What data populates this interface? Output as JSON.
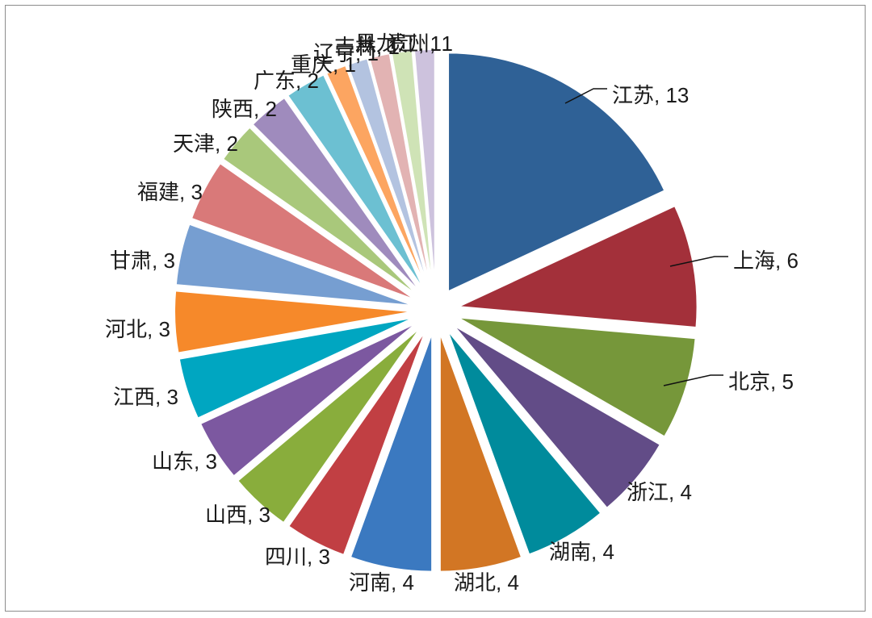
{
  "chart_data": {
    "type": "pie",
    "exploded": true,
    "legend": "none",
    "title": "",
    "slices": [
      {
        "label": "江苏",
        "value": 13,
        "text": "江苏, 13",
        "color": "#2f6196"
      },
      {
        "label": "上海",
        "value": 6,
        "text": "上海, 6",
        "color": "#a3303a"
      },
      {
        "label": "北京",
        "value": 5,
        "text": "北京, 5",
        "color": "#76973a"
      },
      {
        "label": "浙江",
        "value": 4,
        "text": "浙江, 4",
        "color": "#624c87"
      },
      {
        "label": "湖南",
        "value": 4,
        "text": "湖南, 4",
        "color": "#008b9c"
      },
      {
        "label": "湖北",
        "value": 4,
        "text": "湖北, 4",
        "color": "#d27624"
      },
      {
        "label": "河南",
        "value": 4,
        "text": "河南, 4",
        "color": "#3b79c0"
      },
      {
        "label": "四川",
        "value": 3,
        "text": "四川, 3",
        "color": "#c13f43"
      },
      {
        "label": "山西",
        "value": 3,
        "text": "山西, 3",
        "color": "#89ad3c"
      },
      {
        "label": "山东",
        "value": 3,
        "text": "山东, 3",
        "color": "#7c58a0"
      },
      {
        "label": "江西",
        "value": 3,
        "text": "江西, 3",
        "color": "#00a6c1"
      },
      {
        "label": "河北",
        "value": 3,
        "text": "河北, 3",
        "color": "#f6892a"
      },
      {
        "label": "甘肃",
        "value": 3,
        "text": "甘肃, 3",
        "color": "#769ed1"
      },
      {
        "label": "福建",
        "value": 3,
        "text": "福建, 3",
        "color": "#d97979"
      },
      {
        "label": "天津",
        "value": 2,
        "text": "天津, 2",
        "color": "#a9c87b"
      },
      {
        "label": "陕西",
        "value": 2,
        "text": "陕西, 2",
        "color": "#9f8bbd"
      },
      {
        "label": "广东",
        "value": 2,
        "text": "广东, 2",
        "color": "#6cc0d2"
      },
      {
        "label": "重庆",
        "value": 1,
        "text": "重庆, 1",
        "color": "#fca561"
      },
      {
        "label": "辽宁",
        "value": 1,
        "text": "辽宁, 1",
        "color": "#b3c3e0"
      },
      {
        "label": "吉林",
        "value": 1,
        "text": "吉林, 1",
        "color": "#e2b3b3"
      },
      {
        "label": "黑龙江",
        "value": 1,
        "text": "黑龙江, 1",
        "color": "#cfe3b6"
      },
      {
        "label": "贵州",
        "value": 1,
        "text": "贵州, 1",
        "color": "#cdc2dd"
      }
    ]
  }
}
